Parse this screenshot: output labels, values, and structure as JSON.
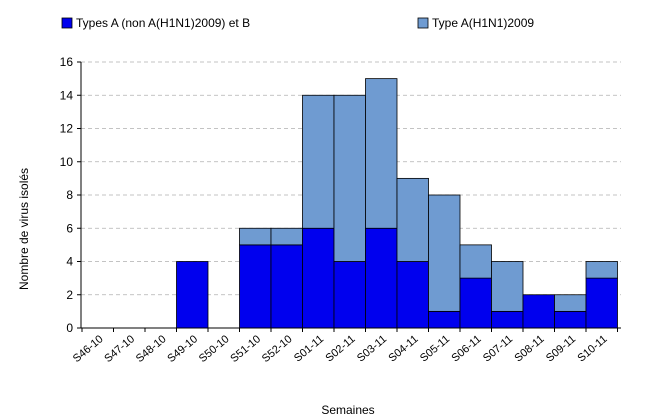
{
  "chart_data": {
    "type": "bar",
    "stacked": true,
    "categories": [
      "S46-10",
      "S47-10",
      "S48-10",
      "S49-10",
      "S50-10",
      "S51-10",
      "S52-10",
      "S01-11",
      "S02-11",
      "S03-11",
      "S04-11",
      "S05-11",
      "S06-11",
      "S07-11",
      "S08-11",
      "S09-11",
      "S10-11"
    ],
    "series": [
      {
        "name": "Types A (non A(H1N1)2009) et B",
        "color": "#0000ee",
        "values": [
          0,
          0,
          0,
          4,
          0,
          5,
          5,
          6,
          4,
          6,
          4,
          1,
          3,
          1,
          2,
          1,
          3
        ]
      },
      {
        "name": "Type A(H1N1)2009",
        "color": "#6f9bd1",
        "values": [
          0,
          0,
          0,
          0,
          0,
          1,
          1,
          8,
          10,
          9,
          5,
          7,
          2,
          3,
          0,
          1,
          1
        ]
      }
    ],
    "xlabel": "Semaines",
    "ylabel": "Nombre de virus isolés",
    "ylim": [
      0,
      16
    ],
    "yticks": [
      0,
      2,
      4,
      6,
      8,
      10,
      12,
      14,
      16
    ],
    "grid": true,
    "legend_position": "top"
  }
}
